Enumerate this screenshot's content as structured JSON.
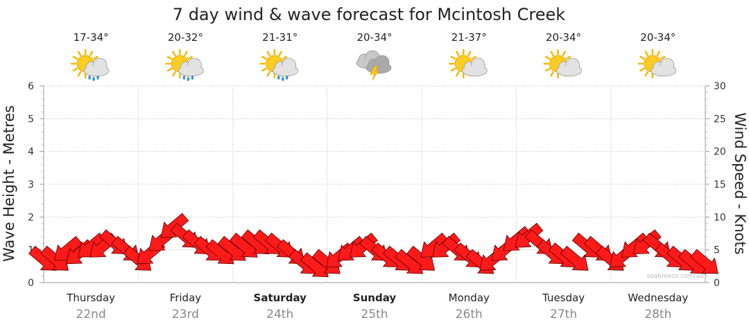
{
  "chart_data": {
    "type": "line",
    "title": "7 day wind & wave forecast for Mcintosh Creek",
    "ylabel_left": "Wave Height - Metres",
    "ylabel_right": "Wind Speed - Knots",
    "ylim_left": [
      0,
      6
    ],
    "ylim_right": [
      0,
      30
    ],
    "yticks_left": [
      "0",
      "1",
      "2",
      "3",
      "4",
      "5",
      "6"
    ],
    "yticks_right": [
      "0",
      "5",
      "10",
      "15",
      "20",
      "25",
      "30"
    ],
    "grid": true,
    "days": [
      {
        "name": "Thursday",
        "date": "22nd",
        "bold": false,
        "temp": "17-34°",
        "icon": "sun-cloud-rain-icon"
      },
      {
        "name": "Friday",
        "date": "23rd",
        "bold": false,
        "temp": "20-32°",
        "icon": "sun-cloud-rain-icon"
      },
      {
        "name": "Saturday",
        "date": "24th",
        "bold": true,
        "temp": "21-31°",
        "icon": "sun-cloud-rain-icon"
      },
      {
        "name": "Sunday",
        "date": "25th",
        "bold": true,
        "temp": "20-34°",
        "icon": "storm-cloud-icon"
      },
      {
        "name": "Monday",
        "date": "26th",
        "bold": false,
        "temp": "21-37°",
        "icon": "sun-cloud-icon"
      },
      {
        "name": "Tuesday",
        "date": "27th",
        "bold": false,
        "temp": "20-34°",
        "icon": "sun-cloud-icon"
      },
      {
        "name": "Wednesday",
        "date": "28th",
        "bold": false,
        "temp": "20-34°",
        "icon": "sun-cloud-icon"
      }
    ],
    "series": [
      {
        "x_day_fraction": [
          0.0,
          0.125,
          0.25,
          0.375,
          0.5,
          0.625,
          0.75,
          0.875,
          1.0,
          1.125,
          1.25,
          1.375,
          1.5,
          1.625,
          1.75,
          1.875,
          2.0,
          2.125,
          2.25,
          2.375,
          2.5,
          2.625,
          2.75,
          2.875,
          3.0,
          3.125,
          3.25,
          3.375,
          3.5,
          3.625,
          3.75,
          3.875,
          4.0,
          4.125,
          4.25,
          4.375,
          4.5,
          4.625,
          4.75,
          4.875,
          5.0,
          5.125,
          5.25,
          5.375,
          5.5,
          5.625,
          5.75,
          5.875,
          6.0,
          6.125,
          6.25,
          6.375,
          6.5,
          6.625,
          6.75,
          6.875,
          7.0
        ],
        "wind_knots": [
          3.5,
          3.5,
          5,
          4.5,
          5.5,
          5.5,
          6,
          5,
          3.5,
          4.5,
          6.5,
          8.5,
          7,
          6,
          5,
          4.5,
          5,
          5.5,
          6,
          6,
          5.5,
          4.5,
          3,
          2.5,
          3,
          4,
          5,
          5.5,
          5,
          4,
          3.5,
          3,
          3.5,
          5.5,
          5.5,
          5,
          4,
          3,
          3.5,
          5,
          6.5,
          7,
          6,
          4.5,
          4,
          3.5,
          5.5,
          5,
          3.5,
          4,
          5.5,
          6,
          5.5,
          4,
          3.5,
          3,
          3
        ],
        "arrow_direction": [
          "SE",
          "SE",
          "SW",
          "SW",
          "SW",
          "SW",
          "SE",
          "SE",
          "SE",
          "SW",
          "SW",
          "SW",
          "SE",
          "SE",
          "SE",
          "SE",
          "SE",
          "SE",
          "SE",
          "SE",
          "SE",
          "SE",
          "SE",
          "SE",
          "SE",
          "SW",
          "SW",
          "SW",
          "SE",
          "SE",
          "SE",
          "SE",
          "SE",
          "SW",
          "SW",
          "SE",
          "SE",
          "SE",
          "SW",
          "SW",
          "SW",
          "SW",
          "SE",
          "SE",
          "SE",
          "SE",
          "SE",
          "SE",
          "SE",
          "SW",
          "SW",
          "SW",
          "SE",
          "SE",
          "SE",
          "SE",
          "SE"
        ]
      }
    ]
  },
  "credit": "seabreeze.com.au"
}
